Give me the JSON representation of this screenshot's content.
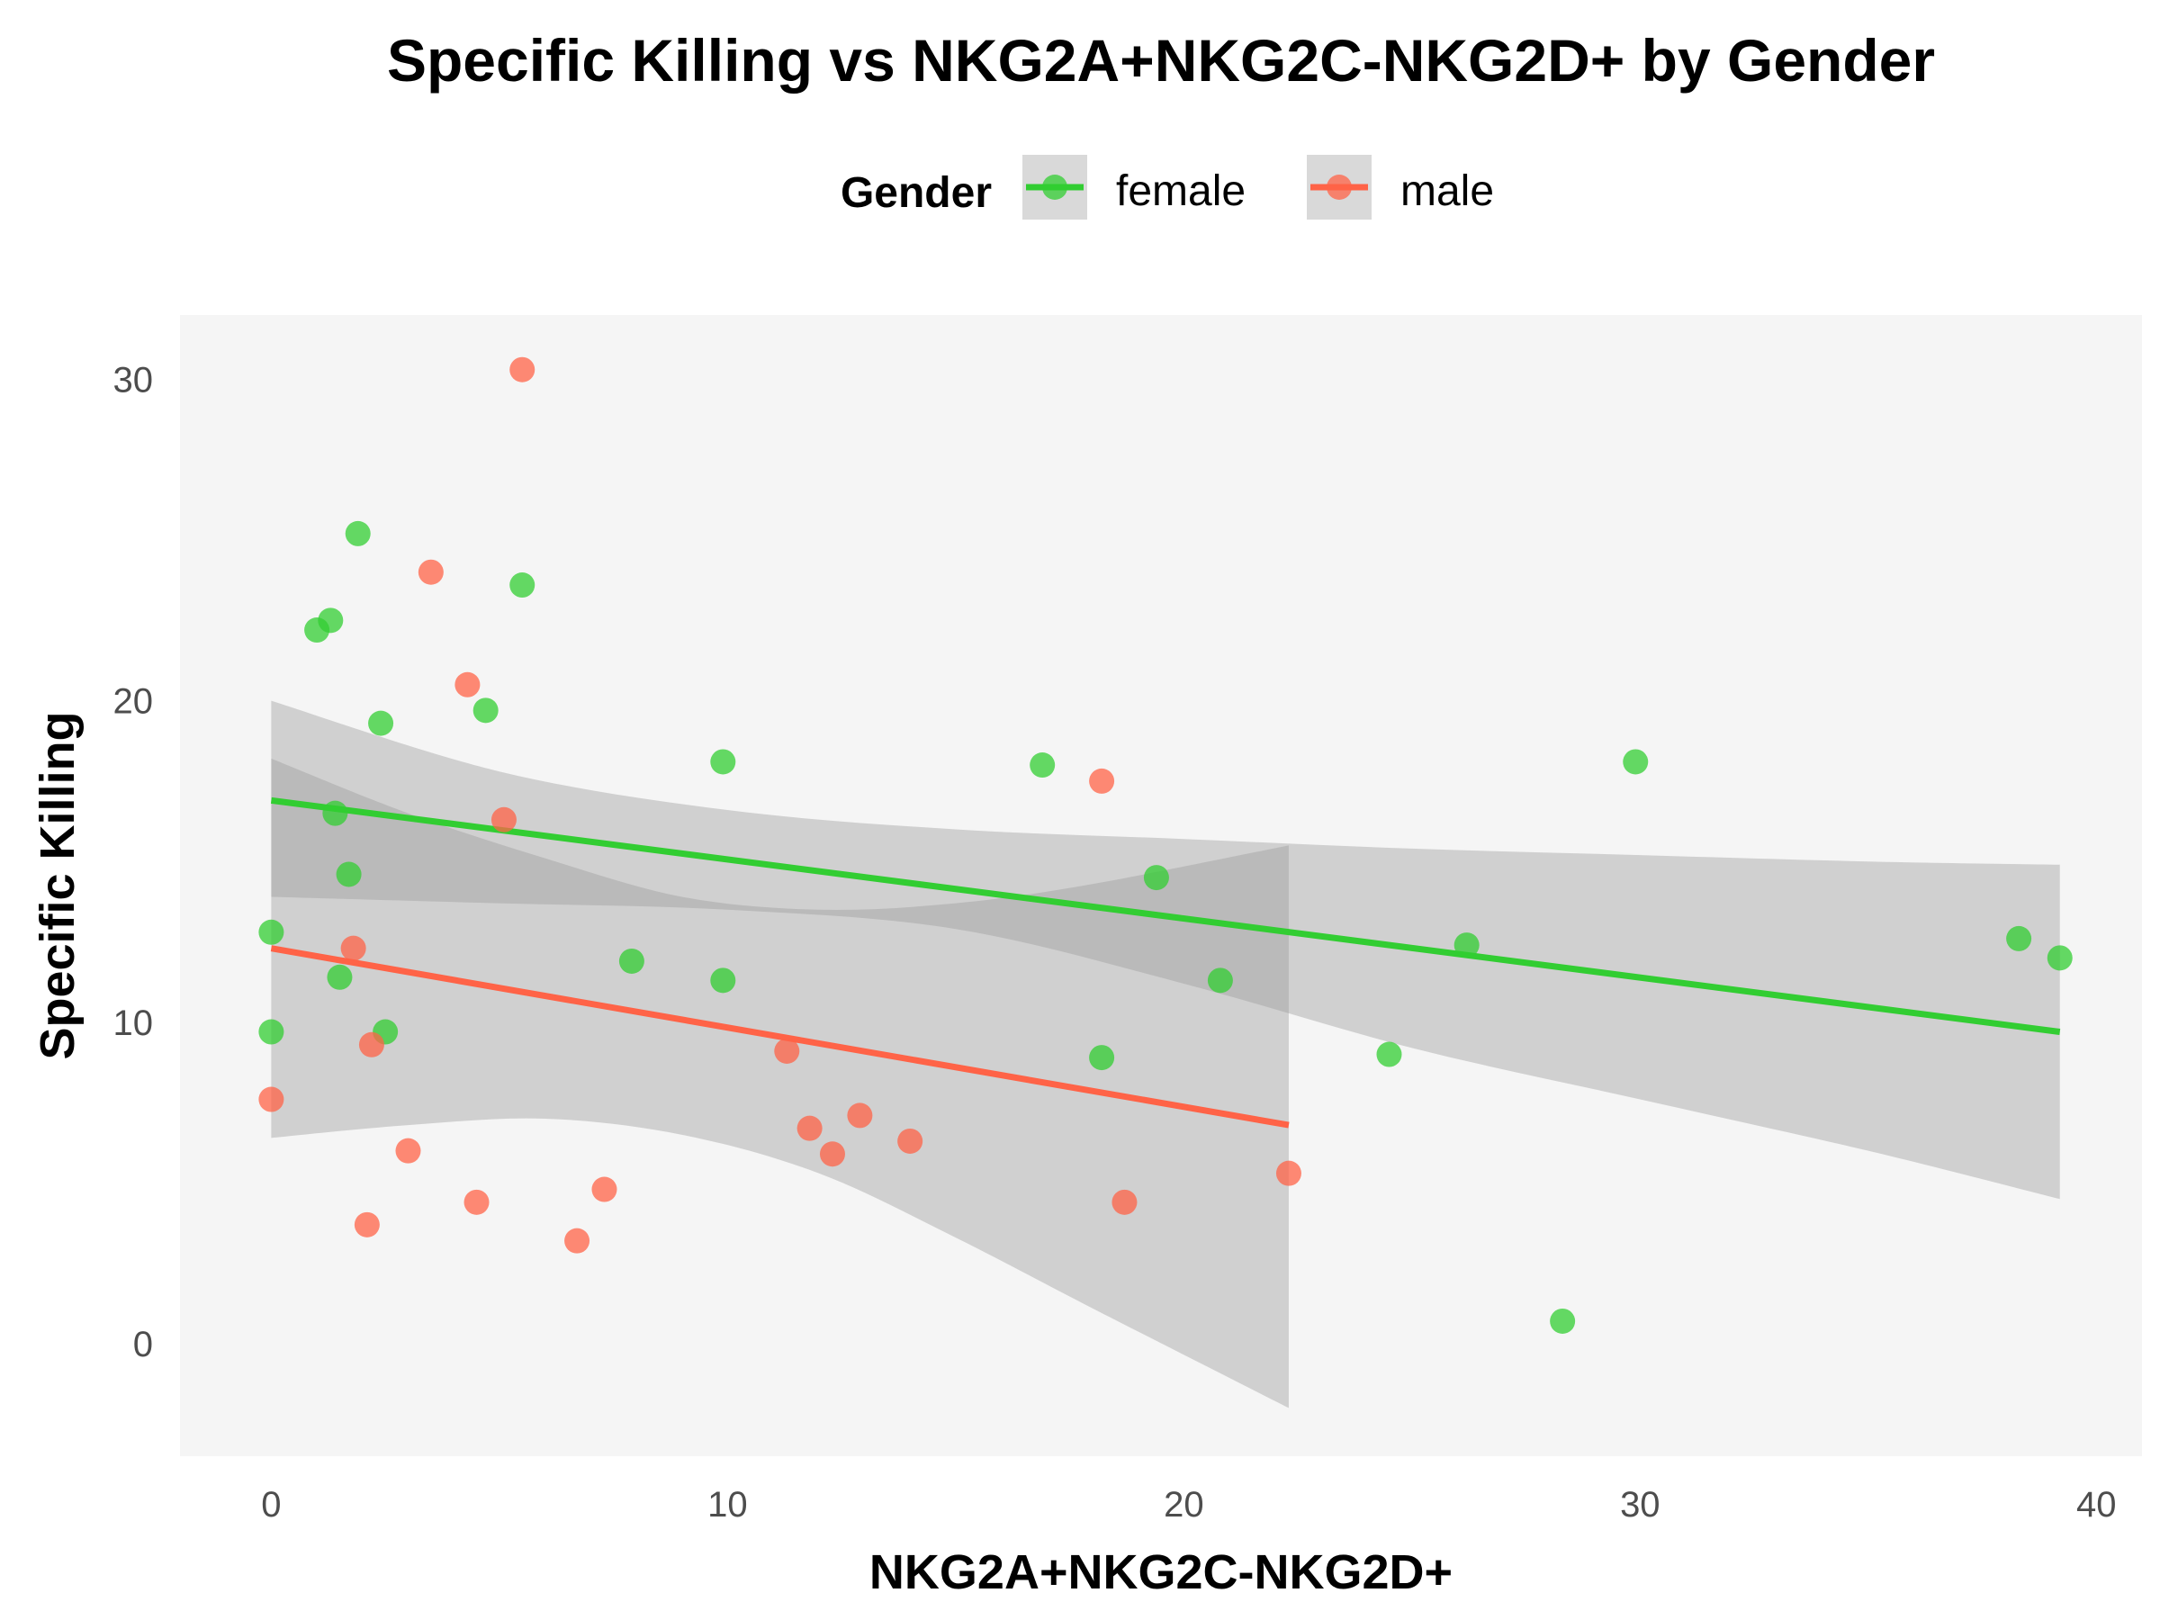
{
  "chart_data": {
    "type": "scatter",
    "title": "Specific Killing vs NKG2A+NKG2C-NKG2D+ by Gender",
    "xlabel": "NKG2A+NKG2C-NKG2D+",
    "ylabel": "Specific Killing",
    "xlim": [
      -2,
      41
    ],
    "ylim": [
      -3.5,
      32
    ],
    "x_ticks": [
      0,
      10,
      20,
      30,
      40
    ],
    "y_ticks": [
      0,
      10,
      20,
      30
    ],
    "grid": false,
    "legend": {
      "title": "Gender",
      "position": "top"
    },
    "series": [
      {
        "name": "female",
        "color": "#32CD32",
        "points": [
          [
            0,
            12.8
          ],
          [
            0,
            9.7
          ],
          [
            1.0,
            22.2
          ],
          [
            1.3,
            22.5
          ],
          [
            1.4,
            16.5
          ],
          [
            1.5,
            11.4
          ],
          [
            1.7,
            14.6
          ],
          [
            1.9,
            25.2
          ],
          [
            2.4,
            19.3
          ],
          [
            2.5,
            9.7
          ],
          [
            4.7,
            19.7
          ],
          [
            5.5,
            23.6
          ],
          [
            7.9,
            11.9
          ],
          [
            9.9,
            11.3
          ],
          [
            9.9,
            18.1
          ],
          [
            16.9,
            18.0
          ],
          [
            18.2,
            8.9
          ],
          [
            19.4,
            14.5
          ],
          [
            20.8,
            11.3
          ],
          [
            24.5,
            9.0
          ],
          [
            26.2,
            12.4
          ],
          [
            28.3,
            0.7
          ],
          [
            29.9,
            18.1
          ],
          [
            38.3,
            12.6
          ],
          [
            39.2,
            12.0
          ]
        ],
        "fit": {
          "x0": 0,
          "y0": 16.9,
          "x1": 39.2,
          "y1": 9.7
        },
        "band_upper": [
          [
            0,
            20.0
          ],
          [
            5,
            17.8
          ],
          [
            10,
            16.6
          ],
          [
            15,
            16.0
          ],
          [
            20,
            15.7
          ],
          [
            25,
            15.4
          ],
          [
            30,
            15.2
          ],
          [
            35,
            15.0
          ],
          [
            39.2,
            14.9
          ]
        ],
        "band_lower": [
          [
            0,
            13.9
          ],
          [
            5,
            13.7
          ],
          [
            10,
            13.5
          ],
          [
            15,
            12.9
          ],
          [
            20,
            11.2
          ],
          [
            25,
            9.2
          ],
          [
            30,
            7.6
          ],
          [
            35,
            6.0
          ],
          [
            39.2,
            4.5
          ]
        ]
      },
      {
        "name": "male",
        "color": "#FF6347",
        "points": [
          [
            0,
            7.6
          ],
          [
            1.8,
            12.3
          ],
          [
            2.1,
            3.7
          ],
          [
            2.2,
            9.3
          ],
          [
            3.0,
            6.0
          ],
          [
            3.5,
            24.0
          ],
          [
            4.3,
            20.5
          ],
          [
            4.5,
            4.4
          ],
          [
            5.1,
            16.3
          ],
          [
            5.5,
            30.3
          ],
          [
            6.7,
            3.2
          ],
          [
            7.3,
            4.8
          ],
          [
            11.3,
            9.1
          ],
          [
            11.8,
            6.7
          ],
          [
            12.3,
            5.9
          ],
          [
            12.9,
            7.1
          ],
          [
            14.0,
            6.3
          ],
          [
            18.2,
            17.5
          ],
          [
            18.7,
            4.4
          ],
          [
            22.3,
            5.3
          ]
        ],
        "fit": {
          "x0": 0,
          "y0": 12.3,
          "x1": 22.3,
          "y1": 6.8
        },
        "band_upper": [
          [
            0,
            18.2
          ],
          [
            3,
            16.5
          ],
          [
            6,
            15.1
          ],
          [
            9,
            13.9
          ],
          [
            12,
            13.5
          ],
          [
            15,
            13.7
          ],
          [
            18,
            14.3
          ],
          [
            22.3,
            15.5
          ]
        ],
        "band_lower": [
          [
            0,
            6.4
          ],
          [
            3,
            6.8
          ],
          [
            6,
            7.0
          ],
          [
            9,
            6.5
          ],
          [
            12,
            5.3
          ],
          [
            15,
            3.3
          ],
          [
            18,
            1.1
          ],
          [
            22.3,
            -2.0
          ]
        ]
      }
    ]
  }
}
